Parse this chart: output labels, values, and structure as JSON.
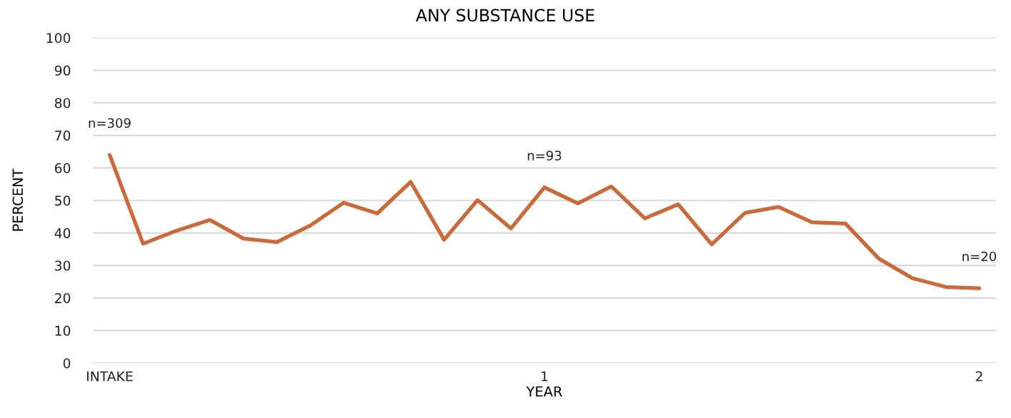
{
  "chart_data": {
    "type": "line",
    "title": "ANY SUBSTANCE USE",
    "xlabel": "YEAR",
    "ylabel": "PERCENT",
    "categories": [
      "INTAKE",
      null,
      null,
      null,
      null,
      null,
      null,
      null,
      null,
      null,
      null,
      null,
      null,
      "1",
      null,
      null,
      null,
      null,
      null,
      null,
      null,
      null,
      null,
      null,
      null,
      null,
      "2"
    ],
    "series": [
      {
        "color": "#c96a3b",
        "values": [
          64.0,
          36.7,
          40.7,
          44.0,
          38.3,
          37.2,
          42.3,
          49.3,
          46.0,
          55.7,
          37.9,
          50.1,
          41.4,
          54.0,
          49.1,
          54.3,
          44.5,
          48.8,
          36.5,
          46.2,
          48.0,
          43.3,
          42.9,
          32.1,
          26.1,
          23.4,
          23.0
        ]
      }
    ],
    "ylim": [
      0,
      100
    ],
    "yticks": [
      0,
      10,
      20,
      30,
      40,
      50,
      60,
      70,
      80,
      90,
      100
    ],
    "annotations": [
      {
        "text": "n=309",
        "x": "INTAKE",
        "y": 64.0
      },
      {
        "text": "n=93",
        "x": "1",
        "y": 54.0
      },
      {
        "text": "n=20",
        "x": "2",
        "y": 23.0
      }
    ],
    "grid": "y",
    "marker": "none",
    "line_style": "solid"
  }
}
